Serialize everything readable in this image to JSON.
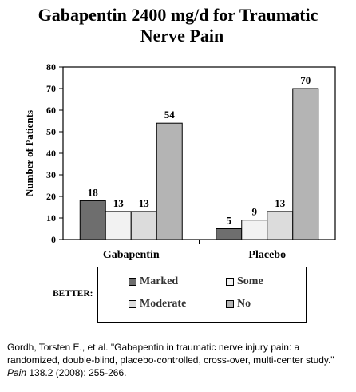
{
  "title": {
    "line1": "Gabapentin 2400 mg/d for Traumatic",
    "line2": "Nerve Pain"
  },
  "legend": {
    "prefix": "BETTER:",
    "items": [
      {
        "label": "Marked",
        "color": "#6e6e6e"
      },
      {
        "label": "Some",
        "color": "#f2f2f2"
      },
      {
        "label": "Moderate",
        "color": "#dcdcdc"
      },
      {
        "label": "No",
        "color": "#b4b4b4"
      }
    ]
  },
  "citation": {
    "text_before": "Gordh, Torsten E., et al. \"Gabapentin in traumatic nerve injury pain: a randomized, double-blind, placebo-controlled, cross-over, multi-center study.\" ",
    "journal": "Pain",
    "text_after": " 138.2 (2008): 255-266."
  },
  "chart_data": {
    "type": "bar",
    "ylabel": "Number of Patients",
    "ylim": [
      0,
      80
    ],
    "yticks": [
      0,
      10,
      20,
      30,
      40,
      50,
      60,
      70,
      80
    ],
    "categories": [
      "Gabapentin",
      "Placebo"
    ],
    "series": [
      {
        "name": "Marked",
        "values": [
          18,
          5
        ],
        "color": "#6e6e6e"
      },
      {
        "name": "Some",
        "values": [
          13,
          9
        ],
        "color": "#f2f2f2"
      },
      {
        "name": "Moderate",
        "values": [
          13,
          13
        ],
        "color": "#dcdcdc"
      },
      {
        "name": "No",
        "values": [
          54,
          70
        ],
        "color": "#b4b4b4"
      }
    ],
    "data_labels": [
      [
        "18",
        "5"
      ],
      [
        "13",
        "9"
      ],
      [
        "13",
        "13"
      ],
      [
        "54",
        "70"
      ]
    ]
  }
}
